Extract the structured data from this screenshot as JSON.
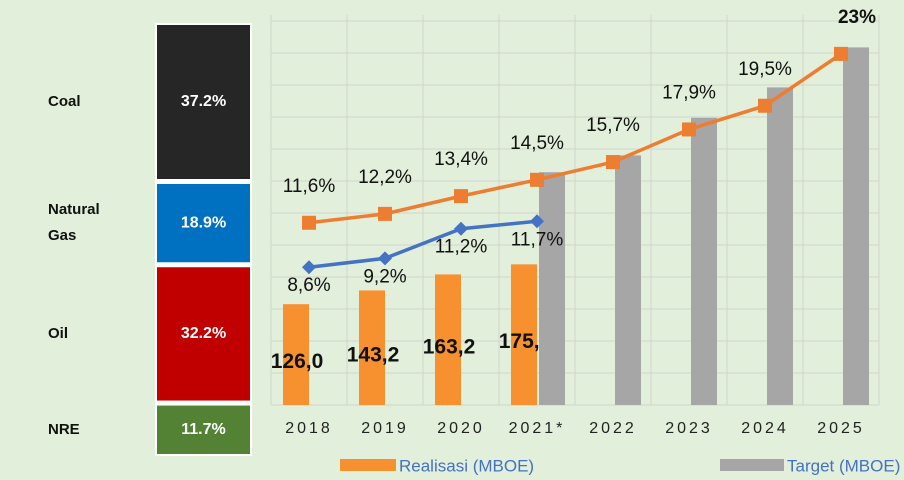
{
  "chart_data": [
    {
      "type": "stacked_bar",
      "categories": [
        "Coal",
        "Natural Gas",
        "Oil",
        "NRE"
      ],
      "values": [
        37.2,
        18.9,
        32.2,
        11.7
      ],
      "value_labels": [
        "37.2%",
        "18.9%",
        "32.2%",
        "11.7%"
      ],
      "colors": [
        "#262626",
        "#0070c0",
        "#c00000",
        "#548235"
      ]
    },
    {
      "type": "combo",
      "categories": [
        "2018",
        "2019",
        "2020",
        "2021*",
        "2022",
        "2023",
        "2024",
        "2025"
      ],
      "ylim": [
        0,
        500
      ],
      "yticks": [
        0,
        40,
        80,
        120,
        160,
        200,
        240,
        280,
        320,
        360,
        400,
        440,
        480
      ],
      "y2lim": [
        -0.7,
        26.3
      ],
      "grid": true,
      "series": [
        {
          "name": "Realisasi (MBOE)",
          "kind": "bar",
          "color": "#f7902f",
          "values": [
            126.0,
            143.2,
            163.2,
            175.8,
            null,
            null,
            null,
            null
          ],
          "value_labels": [
            "126,0",
            "143,2",
            "163,2",
            "175,8",
            null,
            null,
            null,
            null
          ]
        },
        {
          "name": "Target (MBOE)",
          "kind": "bar",
          "color": "#a6a6a6",
          "values": [
            null,
            null,
            null,
            291,
            312,
            359,
            397,
            447
          ]
        },
        {
          "kind": "line",
          "axis": "y2",
          "color": "#ed7d31",
          "marker": "square",
          "values": [
            11.6,
            12.2,
            13.4,
            14.5,
            15.7,
            17.9,
            19.5,
            23
          ],
          "value_labels": [
            "11,6%",
            "12,2%",
            "13,4%",
            "14,5%",
            "15,7%",
            "17,9%",
            "19,5%",
            "23%"
          ]
        },
        {
          "kind": "line",
          "axis": "y2",
          "color": "#4472c4",
          "marker": "diamond",
          "values": [
            8.6,
            9.2,
            11.2,
            11.7,
            null,
            null,
            null,
            null
          ],
          "value_labels": [
            "8,6%",
            "9,2%",
            "11,2%",
            "11,7%",
            null,
            null,
            null,
            null
          ]
        }
      ]
    }
  ]
}
